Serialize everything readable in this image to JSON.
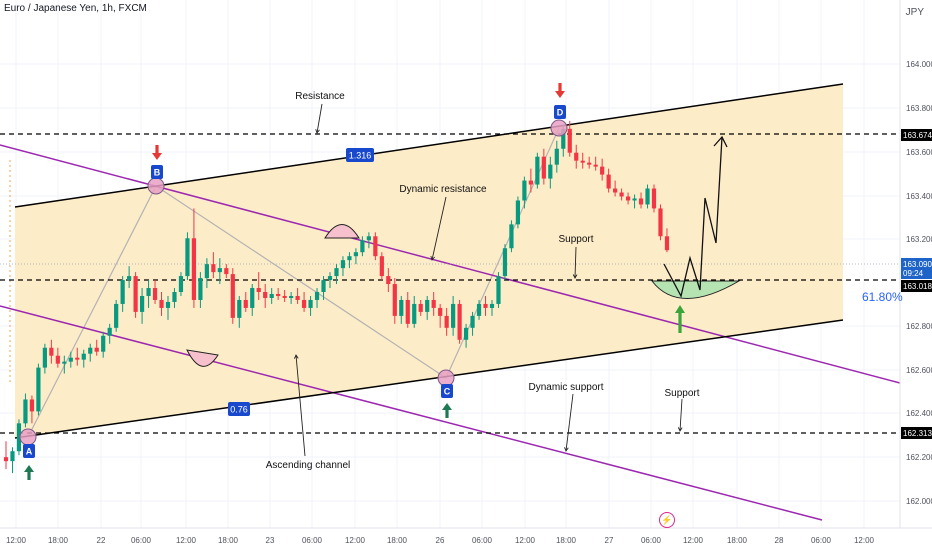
{
  "header": {
    "title": "Euro / Japanese Yen, 1h, FXCM",
    "currency": "JPY"
  },
  "price_badges": {
    "resistance_level": "163.674",
    "last_price": "163.090",
    "countdown": "09:24",
    "support_level": "163.018",
    "lower_support_level": "162.313"
  },
  "fib_label": "61.80%",
  "annotations": {
    "resistance": "Resistance",
    "dynamic_resistance": "Dynamic resistance",
    "support_mid": "Support",
    "dynamic_support": "Dynamic support",
    "support_right": "Support",
    "ascending_channel": "Ascending channel",
    "ratio_upper": "1.316",
    "ratio_lower": "0.76",
    "point_a": "A",
    "point_b": "B",
    "point_c": "C",
    "point_d": "D"
  },
  "colors": {
    "up": "#089981",
    "down": "#f23645",
    "channel_fill": "#fdecc8",
    "dynamic_line": "#9c27b0",
    "badge": "#1848cc",
    "fib": "#2962ff",
    "arrow_up": "#1e7a53",
    "arrow_down": "#e53935"
  },
  "chart_data": {
    "type": "candlestick",
    "title": "Euro / Japanese Yen, 1h, FXCM",
    "y_unit": "JPY",
    "ylim": [
      161.87,
      164.2
    ],
    "y_ticks": [
      "164.000",
      "163.800",
      "163.600",
      "163.400",
      "163.200",
      "162.800",
      "162.600",
      "162.400",
      "162.200",
      "162.000"
    ],
    "x_ticks": [
      "12:00",
      "18:00",
      "22",
      "06:00",
      "12:00",
      "18:00",
      "23",
      "06:00",
      "12:00",
      "18:00",
      "26",
      "06:00",
      "12:00",
      "18:00",
      "27",
      "06:00",
      "12:00",
      "18:00",
      "28",
      "06:00",
      "12:00"
    ],
    "horizontal_levels": [
      163.674,
      163.018,
      162.313
    ],
    "last_price": 163.09,
    "candles": [
      [
        162.05,
        162.13,
        161.99,
        162.03
      ],
      [
        162.03,
        162.1,
        161.97,
        162.08
      ],
      [
        162.08,
        162.24,
        162.06,
        162.22
      ],
      [
        162.22,
        162.37,
        162.2,
        162.34
      ],
      [
        162.34,
        162.36,
        162.22,
        162.28
      ],
      [
        162.28,
        162.52,
        162.26,
        162.5
      ],
      [
        162.5,
        162.62,
        162.47,
        162.6
      ],
      [
        162.6,
        162.64,
        162.52,
        162.56
      ],
      [
        162.56,
        162.6,
        162.5,
        162.52
      ],
      [
        162.52,
        162.56,
        162.47,
        162.53
      ],
      [
        162.53,
        162.58,
        162.5,
        162.55
      ],
      [
        162.55,
        162.6,
        162.51,
        162.54
      ],
      [
        162.54,
        162.59,
        162.5,
        162.57
      ],
      [
        162.57,
        162.62,
        162.53,
        162.6
      ],
      [
        162.6,
        162.64,
        162.56,
        162.58
      ],
      [
        162.58,
        162.68,
        162.55,
        162.66
      ],
      [
        162.66,
        162.72,
        162.62,
        162.7
      ],
      [
        162.7,
        162.84,
        162.68,
        162.82
      ],
      [
        162.82,
        162.96,
        162.78,
        162.94
      ],
      [
        162.94,
        163.01,
        162.9,
        162.96
      ],
      [
        162.96,
        162.98,
        162.75,
        162.78
      ],
      [
        162.78,
        162.9,
        162.72,
        162.86
      ],
      [
        162.86,
        162.94,
        162.8,
        162.9
      ],
      [
        162.9,
        162.94,
        162.82,
        162.84
      ],
      [
        162.84,
        162.88,
        162.76,
        162.8
      ],
      [
        162.8,
        162.86,
        162.74,
        162.83
      ],
      [
        162.83,
        162.9,
        162.8,
        162.88
      ],
      [
        162.88,
        162.98,
        162.86,
        162.96
      ],
      [
        162.96,
        163.18,
        162.94,
        163.15
      ],
      [
        163.15,
        163.3,
        162.8,
        162.84
      ],
      [
        162.84,
        162.98,
        162.8,
        162.95
      ],
      [
        162.95,
        163.05,
        162.9,
        163.02
      ],
      [
        163.02,
        163.08,
        162.95,
        162.98
      ],
      [
        162.98,
        163.05,
        162.92,
        163.0
      ],
      [
        163.0,
        163.02,
        162.95,
        162.97
      ],
      [
        162.97,
        163.0,
        162.72,
        162.75
      ],
      [
        162.75,
        162.86,
        162.7,
        162.84
      ],
      [
        162.84,
        162.88,
        162.78,
        162.8
      ],
      [
        162.8,
        162.92,
        162.76,
        162.9
      ],
      [
        162.9,
        162.98,
        162.84,
        162.88
      ],
      [
        162.88,
        162.92,
        162.8,
        162.85
      ],
      [
        162.85,
        162.9,
        162.82,
        162.87
      ],
      [
        162.87,
        162.9,
        162.84,
        162.86
      ],
      [
        162.86,
        162.89,
        162.83,
        162.85
      ],
      [
        162.85,
        162.88,
        162.82,
        162.86
      ],
      [
        162.86,
        162.9,
        162.82,
        162.84
      ],
      [
        162.84,
        162.88,
        162.78,
        162.8
      ],
      [
        162.8,
        162.86,
        162.76,
        162.84
      ],
      [
        162.84,
        162.9,
        162.8,
        162.88
      ],
      [
        162.88,
        162.96,
        162.84,
        162.94
      ],
      [
        162.94,
        162.98,
        162.9,
        162.96
      ],
      [
        162.96,
        163.02,
        162.92,
        163.0
      ],
      [
        163.0,
        163.06,
        162.96,
        163.04
      ],
      [
        163.04,
        163.08,
        163.0,
        163.06
      ],
      [
        163.06,
        163.1,
        163.02,
        163.08
      ],
      [
        163.08,
        163.16,
        163.06,
        163.14
      ],
      [
        163.14,
        163.18,
        163.1,
        163.16
      ],
      [
        163.16,
        163.18,
        163.04,
        163.06
      ],
      [
        163.06,
        163.08,
        162.94,
        162.96
      ],
      [
        162.96,
        163.0,
        162.88,
        162.92
      ],
      [
        162.92,
        162.95,
        162.72,
        162.76
      ],
      [
        162.76,
        162.86,
        162.72,
        162.84
      ],
      [
        162.84,
        162.88,
        162.7,
        162.72
      ],
      [
        162.72,
        162.86,
        162.7,
        162.82
      ],
      [
        162.82,
        162.84,
        162.76,
        162.78
      ],
      [
        162.78,
        162.86,
        162.74,
        162.84
      ],
      [
        162.84,
        162.88,
        162.76,
        162.8
      ],
      [
        162.8,
        162.82,
        162.7,
        162.76
      ],
      [
        162.76,
        162.8,
        162.66,
        162.7
      ],
      [
        162.7,
        162.86,
        162.66,
        162.82
      ],
      [
        162.82,
        162.84,
        162.62,
        162.64
      ],
      [
        162.64,
        162.72,
        162.6,
        162.7
      ],
      [
        162.7,
        162.78,
        162.66,
        162.76
      ],
      [
        162.76,
        162.84,
        162.74,
        162.82
      ],
      [
        162.82,
        162.86,
        162.76,
        162.8
      ],
      [
        162.8,
        162.84,
        162.76,
        162.82
      ],
      [
        162.82,
        162.98,
        162.8,
        162.96
      ],
      [
        162.96,
        163.12,
        162.94,
        163.1
      ],
      [
        163.1,
        163.24,
        163.08,
        163.22
      ],
      [
        163.22,
        163.36,
        163.2,
        163.34
      ],
      [
        163.34,
        163.46,
        163.3,
        163.44
      ],
      [
        163.44,
        163.5,
        163.38,
        163.42
      ],
      [
        163.42,
        163.58,
        163.4,
        163.56
      ],
      [
        163.56,
        163.6,
        163.42,
        163.45
      ],
      [
        163.45,
        163.56,
        163.4,
        163.52
      ],
      [
        163.52,
        163.64,
        163.48,
        163.6
      ],
      [
        163.6,
        163.72,
        163.56,
        163.7
      ],
      [
        163.7,
        163.74,
        163.56,
        163.58
      ],
      [
        163.58,
        163.62,
        163.5,
        163.54
      ],
      [
        163.54,
        163.58,
        163.5,
        163.53
      ],
      [
        163.53,
        163.56,
        163.5,
        163.52
      ],
      [
        163.52,
        163.56,
        163.49,
        163.51
      ],
      [
        163.51,
        163.55,
        163.44,
        163.47
      ],
      [
        163.47,
        163.5,
        163.38,
        163.4
      ],
      [
        163.4,
        163.44,
        163.36,
        163.38
      ],
      [
        163.38,
        163.4,
        163.34,
        163.36
      ],
      [
        163.36,
        163.38,
        163.32,
        163.34
      ],
      [
        163.34,
        163.37,
        163.3,
        163.35
      ],
      [
        163.35,
        163.38,
        163.3,
        163.32
      ],
      [
        163.32,
        163.42,
        163.3,
        163.4
      ],
      [
        163.4,
        163.42,
        163.28,
        163.3
      ],
      [
        163.3,
        163.32,
        163.14,
        163.16
      ],
      [
        163.16,
        163.2,
        163.08,
        163.09
      ]
    ],
    "annotations": [
      {
        "label": "A",
        "price": 162.32
      },
      {
        "label": "B",
        "price": 163.46
      },
      {
        "label": "C",
        "price": 162.64
      },
      {
        "label": "D",
        "price": 163.72
      }
    ]
  }
}
